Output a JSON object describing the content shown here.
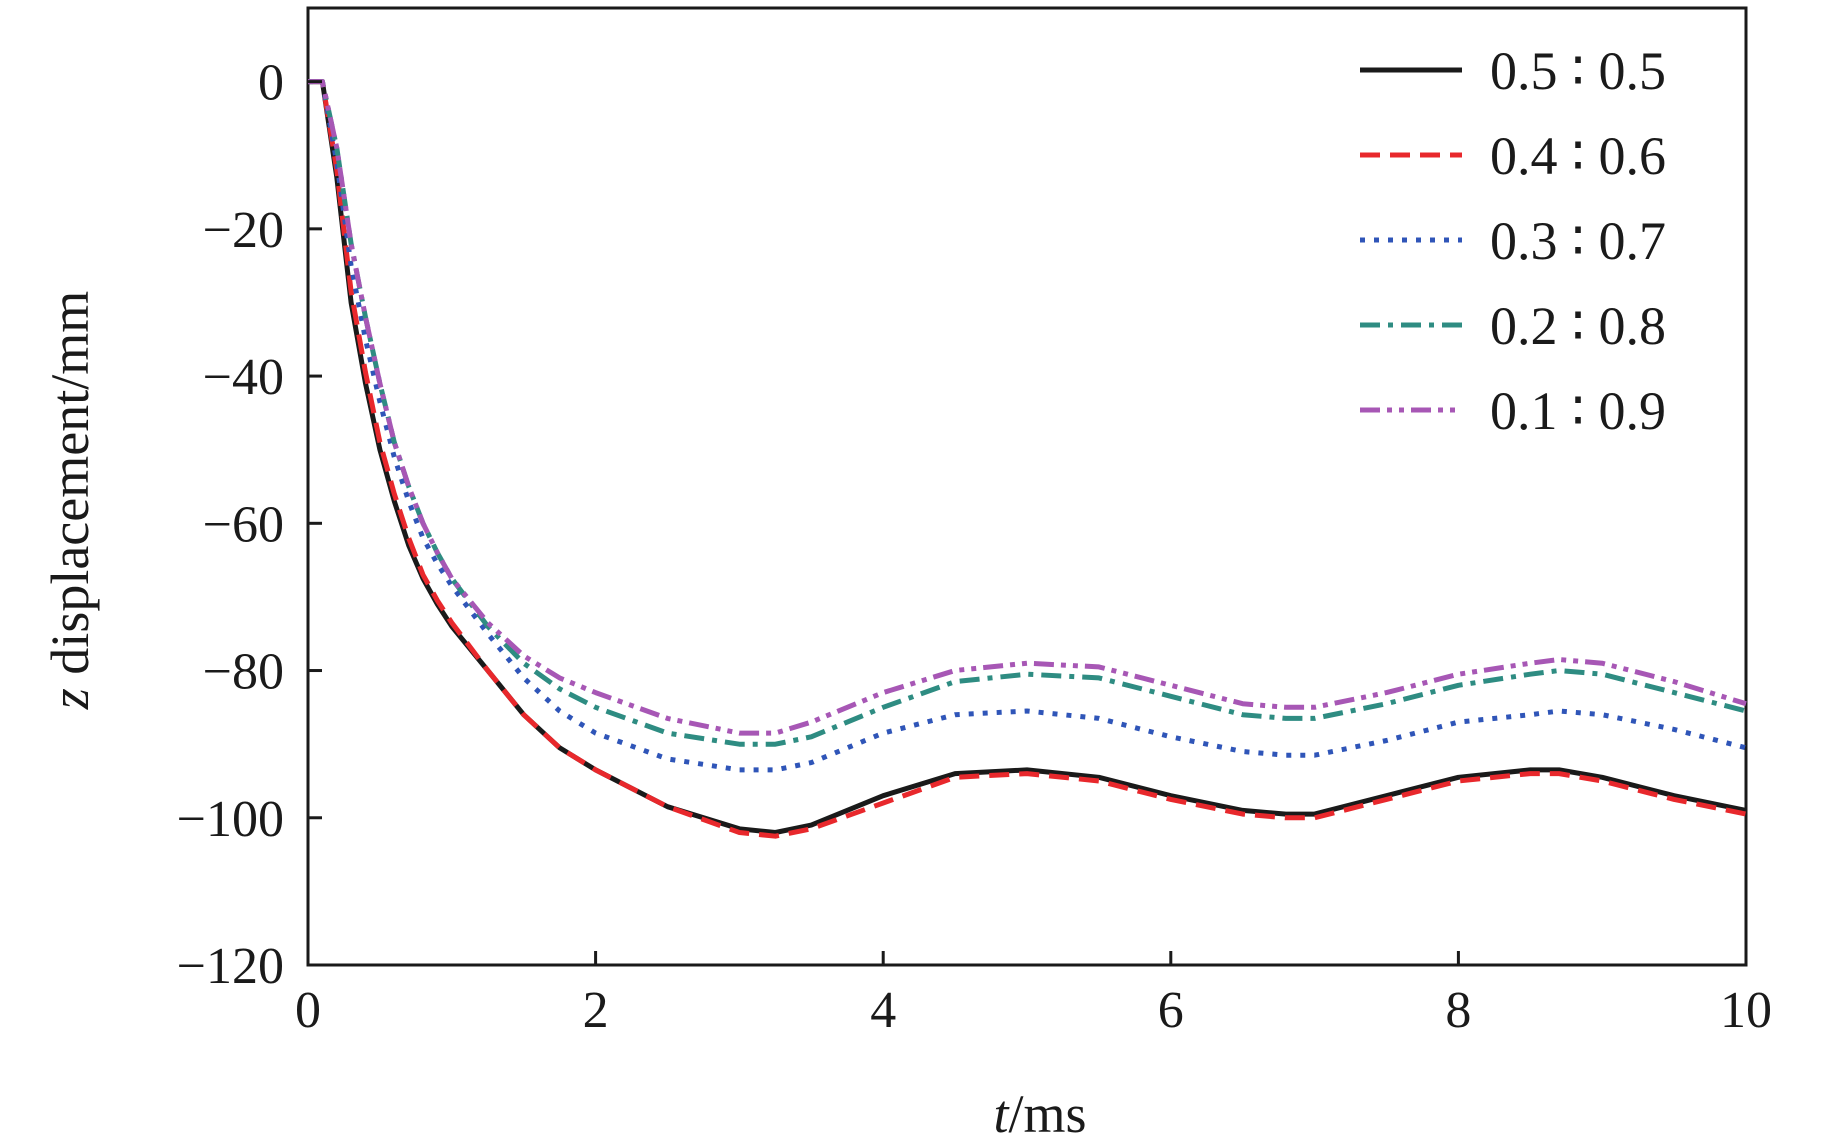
{
  "chart_data": {
    "type": "line",
    "xlabel": "t/ms",
    "ylabel": "z displacement/mm",
    "xlim": [
      0,
      10
    ],
    "ylim": [
      -120,
      10
    ],
    "xticks": [
      0,
      2,
      4,
      6,
      8,
      10
    ],
    "xtick_labels": [
      "0",
      "2",
      "4",
      "6",
      "8",
      "10"
    ],
    "yticks": [
      0,
      -20,
      -40,
      -60,
      -80,
      -100,
      -120
    ],
    "ytick_labels": [
      "0",
      "−20",
      "−40",
      "−60",
      "−80",
      "−100",
      "−120"
    ],
    "grid": false,
    "legend_position": "top-right",
    "x": [
      0,
      0.1,
      0.2,
      0.3,
      0.4,
      0.5,
      0.6,
      0.7,
      0.8,
      0.9,
      1.0,
      1.25,
      1.5,
      1.75,
      2.0,
      2.5,
      3.0,
      3.25,
      3.5,
      4.0,
      4.5,
      5.0,
      5.5,
      6.0,
      6.5,
      6.8,
      7.0,
      7.5,
      8.0,
      8.5,
      8.7,
      9.0,
      9.5,
      10.0
    ],
    "series": [
      {
        "name": "0.5 ∶ 0.5",
        "color": "#1a1a1a",
        "dash": "solid",
        "values": [
          0,
          0,
          -13,
          -30,
          -41,
          -50,
          -57,
          -63,
          -67.5,
          -71,
          -74,
          -80,
          -86,
          -90.5,
          -93.5,
          -98.5,
          -101.5,
          -102,
          -101,
          -97,
          -94,
          -93.5,
          -94.5,
          -97,
          -99,
          -99.5,
          -99.5,
          -97,
          -94.5,
          -93.5,
          -93.5,
          -94.5,
          -97,
          -99
        ]
      },
      {
        "name": "0.4 ∶ 0.6",
        "color": "#e8282c",
        "dash": "dashed",
        "values": [
          0,
          0,
          -12,
          -28.5,
          -39.5,
          -49,
          -56,
          -62,
          -67,
          -70.5,
          -73.5,
          -80,
          -86,
          -90.5,
          -93.5,
          -98.5,
          -102,
          -102.5,
          -101.5,
          -98,
          -94.5,
          -94,
          -95,
          -97.5,
          -99.5,
          -100,
          -100,
          -97.5,
          -95,
          -94,
          -94,
          -95,
          -97.5,
          -99.5
        ]
      },
      {
        "name": "0.3 ∶ 0.7",
        "color": "#2f55b8",
        "dash": "dotted",
        "values": [
          0,
          0,
          -11,
          -25,
          -35,
          -43.5,
          -51,
          -57,
          -62,
          -65.5,
          -68.5,
          -75,
          -81,
          -85.5,
          -88.5,
          -92,
          -93.5,
          -93.5,
          -92.5,
          -88.5,
          -86,
          -85.5,
          -86.5,
          -89,
          -91,
          -91.5,
          -91.5,
          -89.5,
          -87,
          -86,
          -85.5,
          -86,
          -88,
          -90.5
        ]
      },
      {
        "name": "0.2 ∶ 0.8",
        "color": "#2e8c82",
        "dash": "dashdot",
        "values": [
          0,
          0,
          -9,
          -22,
          -32,
          -41,
          -49,
          -55,
          -60,
          -64,
          -67.5,
          -74,
          -79,
          -82.5,
          -85,
          -88.5,
          -90,
          -90,
          -89,
          -85,
          -81.5,
          -80.5,
          -81,
          -83.5,
          -86,
          -86.5,
          -86.5,
          -84.5,
          -82,
          -80.5,
          -80,
          -80.5,
          -83,
          -85.5
        ]
      },
      {
        "name": "0.1 ∶ 0.9",
        "color": "#a757b5",
        "dash": "dashdotdot",
        "values": [
          0,
          0,
          -9,
          -22,
          -32,
          -41,
          -49,
          -55,
          -60,
          -64,
          -67.5,
          -73.5,
          -78,
          -81,
          -83,
          -86.5,
          -88.5,
          -88.5,
          -87,
          -83,
          -80,
          -79,
          -79.5,
          -82,
          -84.5,
          -85,
          -85,
          -83,
          -80.5,
          -79,
          -78.5,
          -79,
          -81.5,
          -84.5
        ]
      }
    ]
  }
}
